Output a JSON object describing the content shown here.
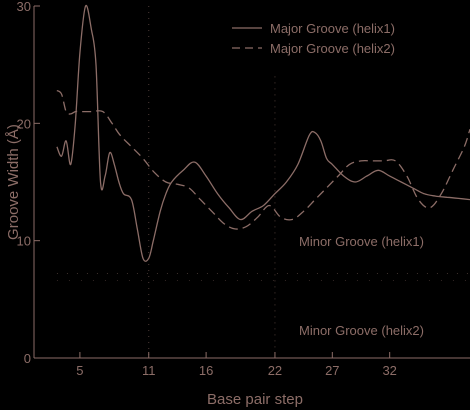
{
  "colors": {
    "background": "#000000",
    "line": "#8c6d67",
    "text": "#8c6d67",
    "minor_dots": "#8a6a64"
  },
  "chart_data": {
    "type": "line",
    "title": "",
    "xlabel": "Base pair step",
    "ylabel": "Groove Width (Å)",
    "xlim": [
      1,
      39
    ],
    "ylim": [
      0,
      30
    ],
    "xticks": [
      5,
      11,
      16,
      22,
      27,
      32
    ],
    "yticks": [
      0,
      10,
      20,
      30
    ],
    "legend_position": "top-right",
    "grid": false,
    "series": [
      {
        "name": "Major Groove (helix1)",
        "style": "solid",
        "x": [
          3.0,
          3.4,
          3.8,
          4.2,
          4.6,
          5.0,
          5.5,
          6.0,
          6.4,
          6.8,
          7.2,
          7.6,
          8.0,
          8.4,
          8.8,
          9.5,
          10.0,
          10.5,
          11.0,
          11.4,
          12.0,
          12.5,
          13.0,
          14.0,
          15.0,
          16.0,
          17.0,
          18.0,
          19.0,
          20.0,
          21.0,
          22.0,
          23.0,
          24.0,
          25.0,
          25.5,
          26.0,
          26.5,
          27.0,
          28.0,
          29.0,
          30.0,
          31.0,
          32.0,
          33.0,
          34.0,
          35.0,
          36.0,
          37.0,
          38.0,
          39.0
        ],
        "y": [
          18.0,
          17.2,
          18.5,
          16.5,
          20.0,
          26.0,
          30.0,
          28.0,
          25.0,
          15.0,
          15.5,
          17.5,
          16.5,
          15.0,
          14.0,
          13.5,
          11.0,
          8.5,
          8.5,
          10.0,
          12.5,
          14.0,
          15.0,
          16.0,
          16.7,
          15.5,
          14.0,
          12.8,
          11.8,
          12.5,
          13.0,
          14.0,
          15.0,
          16.5,
          19.0,
          19.2,
          18.5,
          17.0,
          16.5,
          15.5,
          15.0,
          15.5,
          16.0,
          15.5,
          15.0,
          14.5,
          14.0,
          13.8,
          13.7,
          13.6,
          13.5
        ]
      },
      {
        "name": "Major Groove (helix2)",
        "style": "dashed",
        "x": [
          3.0,
          3.4,
          3.8,
          4.2,
          4.6,
          5.0,
          6.0,
          7.0,
          7.8,
          8.5,
          9.5,
          10.5,
          11.5,
          12.5,
          13.5,
          14.5,
          15.5,
          16.5,
          17.5,
          18.5,
          19.5,
          20.5,
          21.5,
          22.5,
          23.5,
          24.5,
          25.5,
          26.5,
          27.5,
          28.5,
          29.5,
          30.5,
          31.5,
          32.5,
          33.5,
          34.5,
          35.5,
          36.5,
          37.5,
          38.5,
          39.0
        ],
        "y": [
          22.8,
          22.5,
          21.0,
          20.8,
          21.0,
          21.0,
          21.0,
          21.0,
          20.0,
          19.0,
          18.0,
          17.0,
          15.8,
          15.0,
          14.8,
          14.5,
          13.5,
          12.5,
          11.5,
          11.0,
          11.2,
          12.0,
          13.0,
          12.0,
          11.8,
          12.5,
          13.5,
          14.5,
          15.5,
          16.5,
          16.8,
          16.8,
          16.8,
          16.8,
          15.5,
          13.5,
          12.8,
          14.0,
          16.0,
          18.0,
          19.5
        ]
      }
    ],
    "annotations": [
      "Minor Groove (helix1)",
      "Minor Groove (helix2)"
    ]
  }
}
